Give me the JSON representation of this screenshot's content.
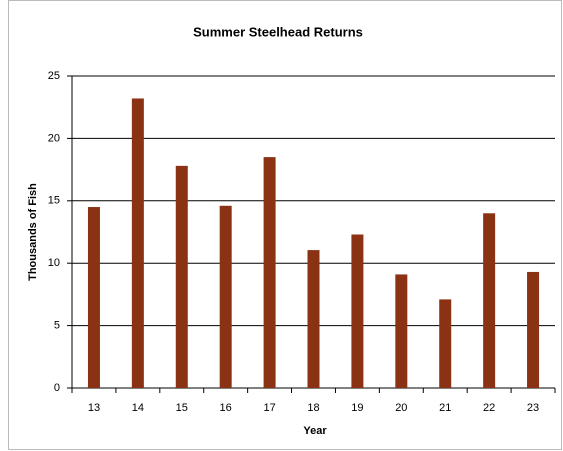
{
  "chart_data": {
    "type": "bar",
    "title": "Summer Steelhead Returns",
    "x_label": "Year",
    "y_label": "Thousands of Fish",
    "categories": [
      "13",
      "14",
      "15",
      "16",
      "17",
      "18",
      "19",
      "20",
      "21",
      "22",
      "23"
    ],
    "values": [
      14.5,
      23.2,
      17.8,
      14.6,
      18.5,
      11.05,
      12.3,
      9.1,
      7.1,
      14.0,
      9.3
    ],
    "color": "#8b3214",
    "ylim": [
      0,
      25
    ],
    "yticks": [
      0,
      5,
      10,
      15,
      20,
      25
    ],
    "grid": true
  }
}
